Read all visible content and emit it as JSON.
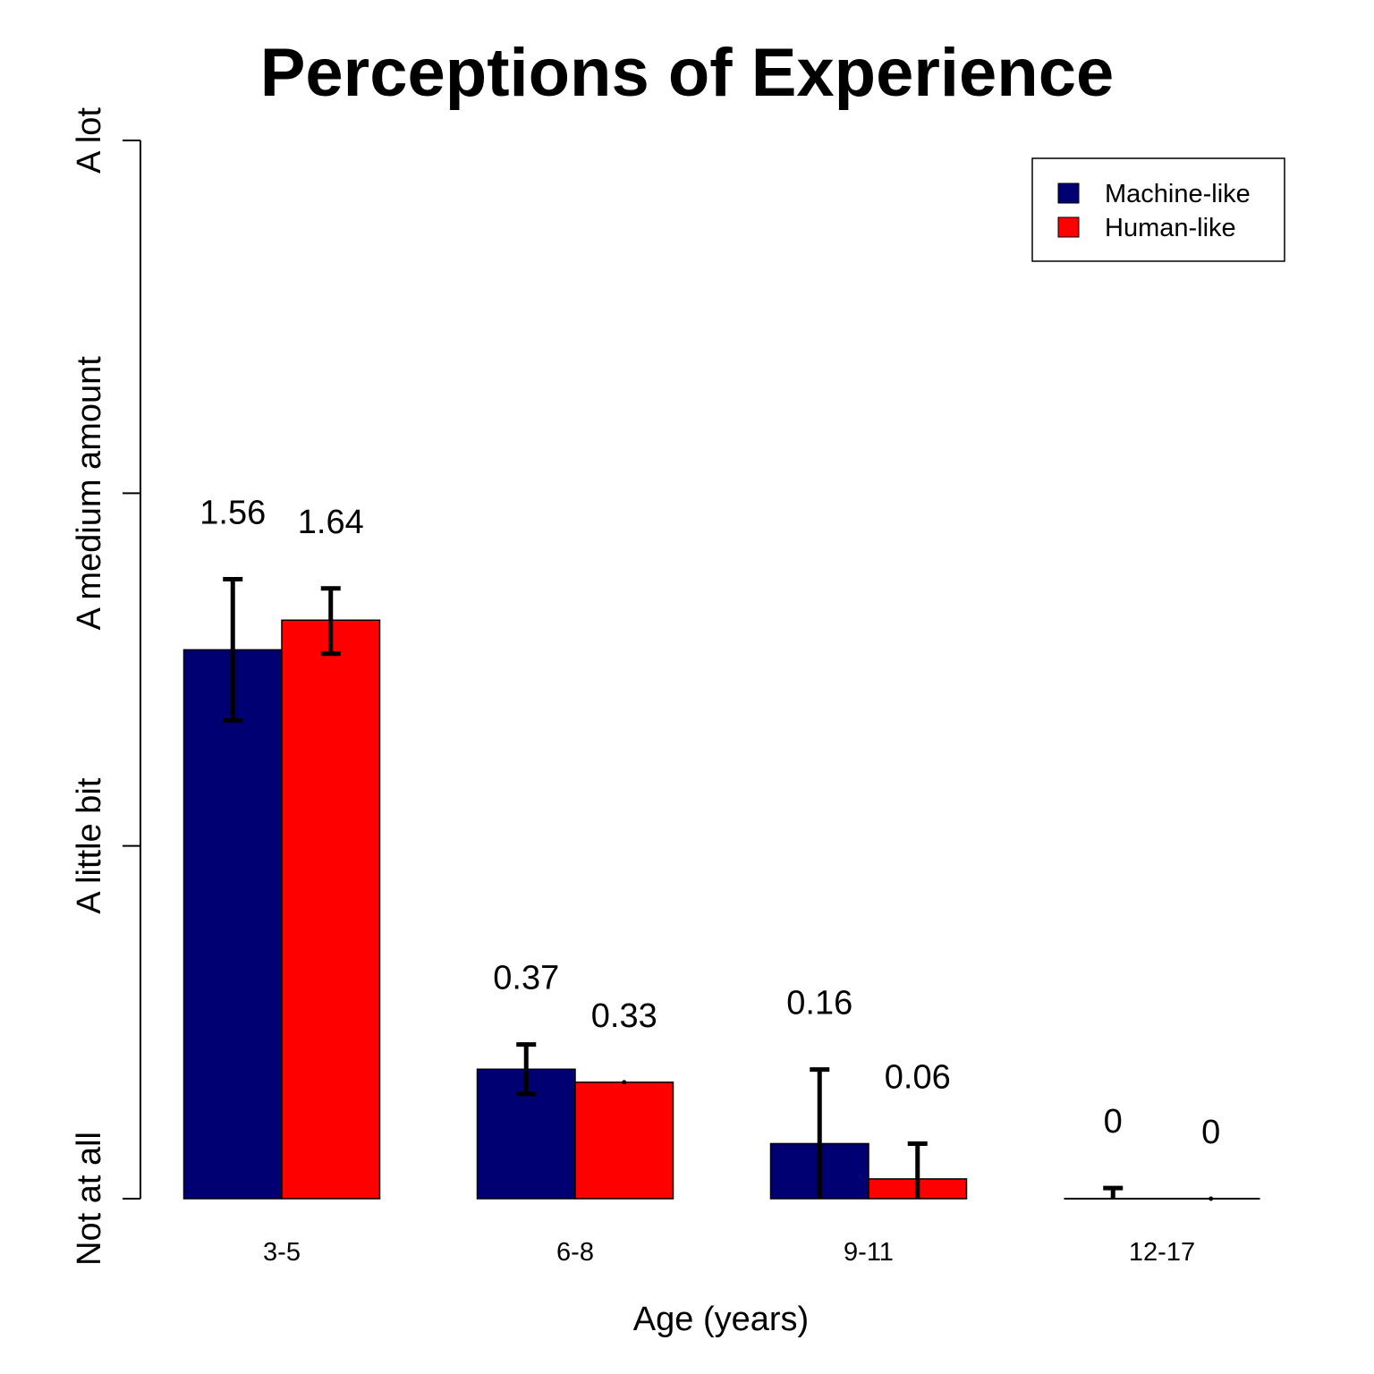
{
  "chart_data": {
    "type": "bar",
    "title": "Perceptions of Experience",
    "xlabel": "Age (years)",
    "ylabel": "",
    "ylim": [
      0,
      3
    ],
    "y_ticks": [
      {
        "value": 0,
        "label": "Not at all"
      },
      {
        "value": 1,
        "label": "A little bit"
      },
      {
        "value": 2,
        "label": "A medium amount"
      },
      {
        "value": 3,
        "label": "A lot"
      }
    ],
    "categories": [
      "3-5",
      "6-8",
      "9-11",
      "12-17"
    ],
    "series": [
      {
        "name": "Machine-like",
        "color": "#000073",
        "values": [
          1.556,
          0.367,
          0.156,
          0
        ],
        "labels": [
          "1.56",
          "0.37",
          "0.16",
          "0"
        ],
        "err_low": [
          0.2,
          0.07,
          0.156,
          0
        ],
        "err_high": [
          0.2,
          0.07,
          0.21,
          0.03
        ]
      },
      {
        "name": "Human-like",
        "color": "#FF0000",
        "values": [
          1.64,
          0.33,
          0.056,
          0
        ],
        "labels": [
          "1.64",
          "0.33",
          "0.06",
          "0"
        ],
        "err_low": [
          0.095,
          0,
          0.056,
          0
        ],
        "err_high": [
          0.09,
          0,
          0.1,
          0
        ]
      }
    ],
    "legend": {
      "position": "top-right"
    },
    "grid": false
  }
}
